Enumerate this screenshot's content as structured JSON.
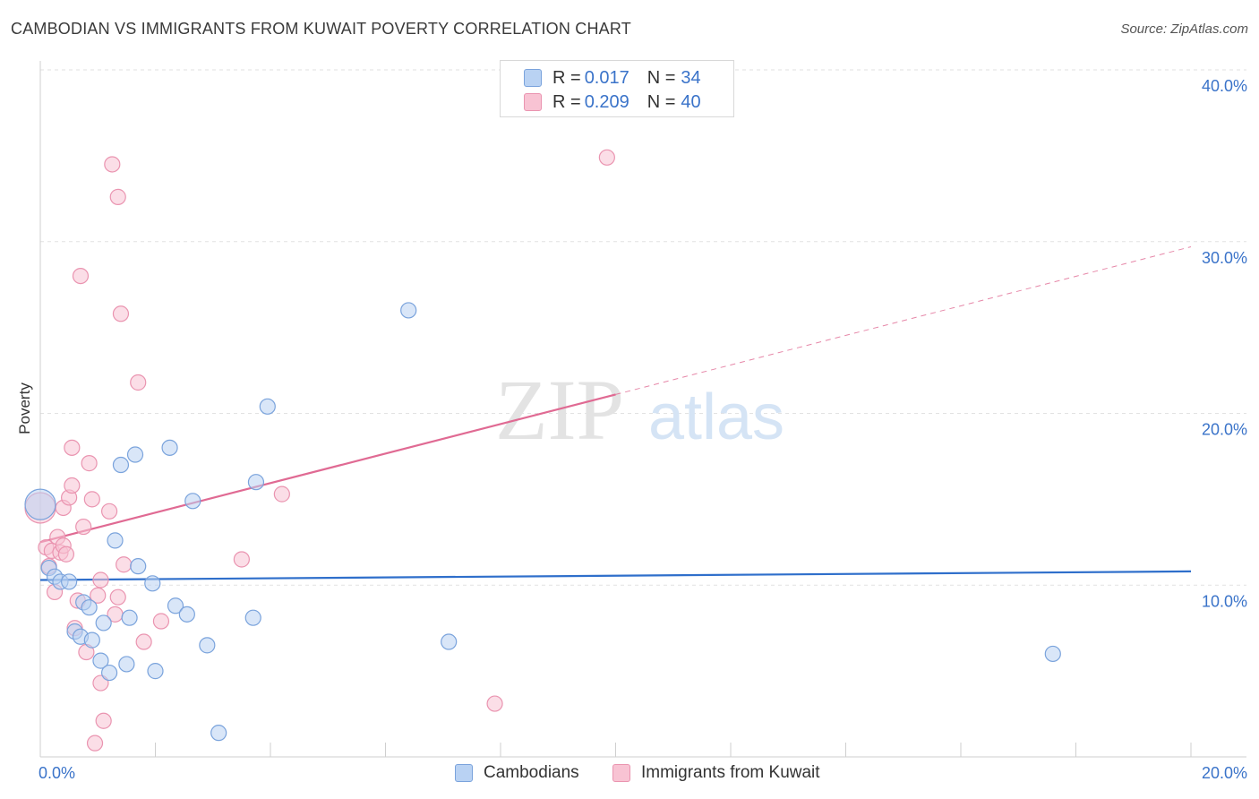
{
  "header": {
    "title": "CAMBODIAN VS IMMIGRANTS FROM KUWAIT POVERTY CORRELATION CHART",
    "source": "Source: ZipAtlas.com"
  },
  "watermark": {
    "zip": "ZIP",
    "atlas": "atlas"
  },
  "legend_top": {
    "rows": [
      {
        "r_label": "R = ",
        "r_value": "0.017",
        "n_label": "N = ",
        "n_value": "34"
      },
      {
        "r_label": "R = ",
        "r_value": "0.209",
        "n_label": "N = ",
        "n_value": "40"
      }
    ]
  },
  "legend_bottom": {
    "items": [
      {
        "label": "Cambodians"
      },
      {
        "label": "Immigrants from Kuwait"
      }
    ]
  },
  "colors": {
    "blue_fill": "#b9d2f3",
    "blue_stroke": "#7aa3dc",
    "blue_line": "#2f6fcb",
    "pink_fill": "#f8c3d3",
    "pink_stroke": "#ea94b0",
    "pink_line": "#e06a93",
    "axis_label": "#3a73c9"
  },
  "chart_data": {
    "type": "scatter",
    "title": "CAMBODIAN VS IMMIGRANTS FROM KUWAIT POVERTY CORRELATION CHART",
    "xlabel": "",
    "ylabel": "Poverty",
    "xlim": [
      0,
      20
    ],
    "ylim": [
      0,
      40
    ],
    "x_tick_labels": [
      "0.0%",
      "20.0%"
    ],
    "y_ticks": [
      10,
      20,
      30,
      40
    ],
    "y_tick_labels": [
      "10.0%",
      "20.0%",
      "30.0%",
      "40.0%"
    ],
    "series": [
      {
        "name": "Cambodians",
        "R": 0.017,
        "N": 34,
        "trend": {
          "x": [
            0,
            20
          ],
          "y": [
            10.3,
            10.8
          ]
        },
        "points": [
          {
            "x": 0.0,
            "y": 14.7,
            "big": true
          },
          {
            "x": 0.15,
            "y": 11.0
          },
          {
            "x": 0.25,
            "y": 10.5
          },
          {
            "x": 0.35,
            "y": 10.2
          },
          {
            "x": 0.5,
            "y": 10.2
          },
          {
            "x": 0.75,
            "y": 9.0
          },
          {
            "x": 0.85,
            "y": 8.7
          },
          {
            "x": 0.6,
            "y": 7.3
          },
          {
            "x": 0.7,
            "y": 7.0
          },
          {
            "x": 0.9,
            "y": 6.8
          },
          {
            "x": 1.1,
            "y": 7.8
          },
          {
            "x": 1.05,
            "y": 5.6
          },
          {
            "x": 1.2,
            "y": 4.9
          },
          {
            "x": 1.3,
            "y": 12.6
          },
          {
            "x": 1.4,
            "y": 17.0
          },
          {
            "x": 1.55,
            "y": 8.1
          },
          {
            "x": 1.5,
            "y": 5.4
          },
          {
            "x": 1.65,
            "y": 17.6
          },
          {
            "x": 1.7,
            "y": 11.1
          },
          {
            "x": 1.95,
            "y": 10.1
          },
          {
            "x": 2.0,
            "y": 5.0
          },
          {
            "x": 2.25,
            "y": 18.0
          },
          {
            "x": 2.35,
            "y": 8.8
          },
          {
            "x": 2.55,
            "y": 8.3
          },
          {
            "x": 2.65,
            "y": 14.9
          },
          {
            "x": 2.9,
            "y": 6.5
          },
          {
            "x": 3.1,
            "y": 1.4
          },
          {
            "x": 3.7,
            "y": 8.1
          },
          {
            "x": 3.75,
            "y": 16.0
          },
          {
            "x": 3.95,
            "y": 20.4
          },
          {
            "x": 6.4,
            "y": 26.0
          },
          {
            "x": 7.1,
            "y": 6.7
          },
          {
            "x": 17.6,
            "y": 6.0
          }
        ]
      },
      {
        "name": "Immigrants from Kuwait",
        "R": 0.209,
        "N": 40,
        "trend": {
          "x": [
            0,
            10
          ],
          "y": [
            12.5,
            21.1
          ],
          "dashed_to": {
            "x": 20,
            "y": 29.7
          }
        },
        "points": [
          {
            "x": 0.0,
            "y": 14.5,
            "big": true
          },
          {
            "x": 0.1,
            "y": 12.2
          },
          {
            "x": 0.15,
            "y": 11.1
          },
          {
            "x": 0.2,
            "y": 12.0
          },
          {
            "x": 0.25,
            "y": 9.6
          },
          {
            "x": 0.3,
            "y": 12.8
          },
          {
            "x": 0.35,
            "y": 11.9
          },
          {
            "x": 0.4,
            "y": 14.5
          },
          {
            "x": 0.4,
            "y": 12.3
          },
          {
            "x": 0.45,
            "y": 11.8
          },
          {
            "x": 0.5,
            "y": 15.1
          },
          {
            "x": 0.55,
            "y": 15.8
          },
          {
            "x": 0.55,
            "y": 18.0
          },
          {
            "x": 0.6,
            "y": 7.5
          },
          {
            "x": 0.65,
            "y": 9.1
          },
          {
            "x": 0.7,
            "y": 28.0
          },
          {
            "x": 0.75,
            "y": 13.4
          },
          {
            "x": 0.8,
            "y": 6.1
          },
          {
            "x": 0.85,
            "y": 17.1
          },
          {
            "x": 0.9,
            "y": 15.0
          },
          {
            "x": 0.95,
            "y": 0.8
          },
          {
            "x": 1.0,
            "y": 9.4
          },
          {
            "x": 1.05,
            "y": 10.3
          },
          {
            "x": 1.05,
            "y": 4.3
          },
          {
            "x": 1.1,
            "y": 2.1
          },
          {
            "x": 1.2,
            "y": 14.3
          },
          {
            "x": 1.25,
            "y": 34.5
          },
          {
            "x": 1.3,
            "y": 8.3
          },
          {
            "x": 1.35,
            "y": 9.3
          },
          {
            "x": 1.35,
            "y": 32.6
          },
          {
            "x": 1.4,
            "y": 25.8
          },
          {
            "x": 1.45,
            "y": 11.2
          },
          {
            "x": 1.7,
            "y": 21.8
          },
          {
            "x": 1.8,
            "y": 6.7
          },
          {
            "x": 2.1,
            "y": 7.9
          },
          {
            "x": 3.5,
            "y": 11.5
          },
          {
            "x": 4.2,
            "y": 15.3
          },
          {
            "x": 7.9,
            "y": 3.1
          },
          {
            "x": 9.85,
            "y": 34.9
          }
        ]
      }
    ]
  }
}
